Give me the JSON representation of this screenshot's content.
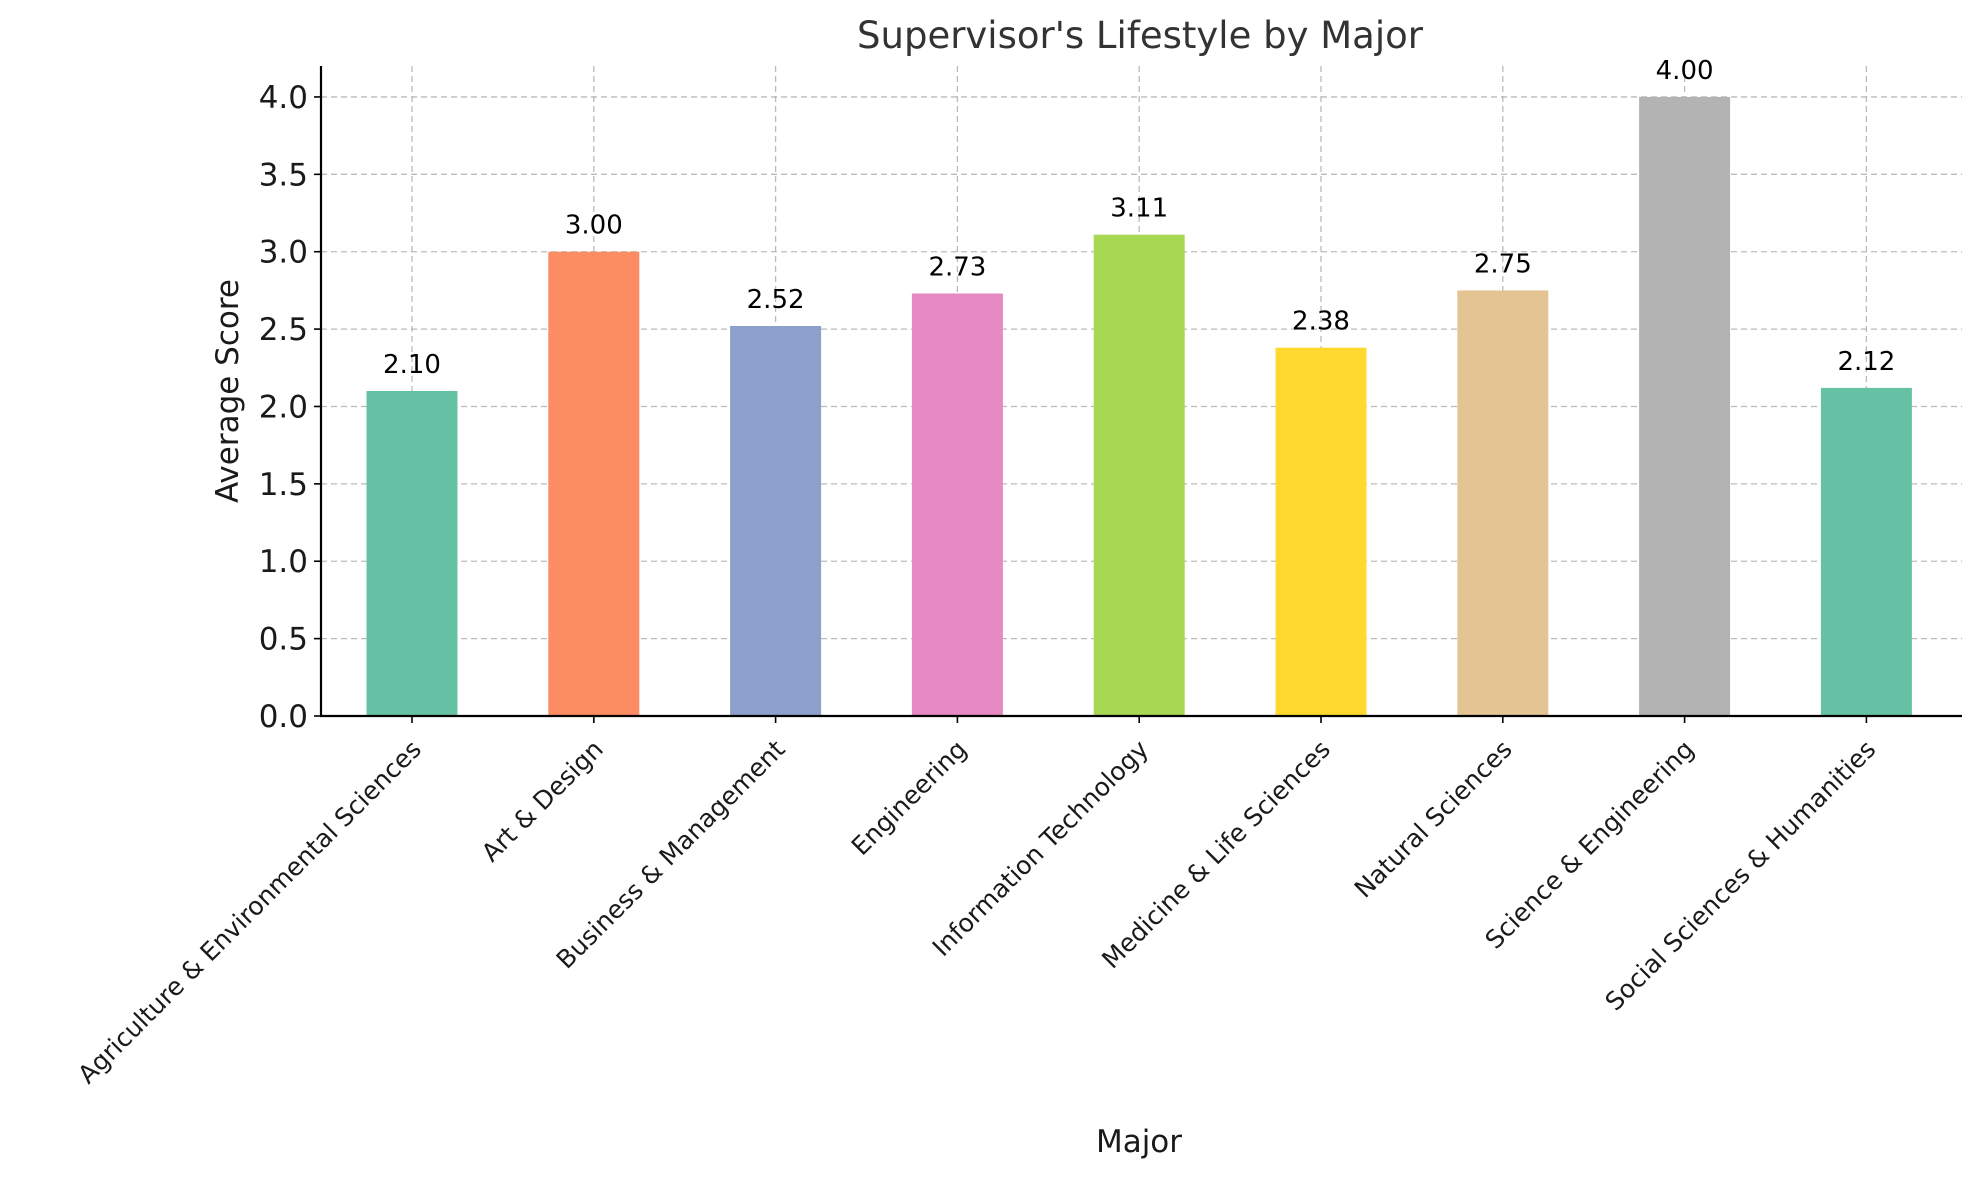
{
  "chart_data": {
    "type": "bar",
    "title": "Supervisor's Lifestyle by Major",
    "xlabel": "Major",
    "ylabel": "Average Score",
    "categories": [
      "Agriculture & Environmental Sciences",
      "Art & Design",
      "Business & Management",
      "Engineering",
      "Information Technology",
      "Medicine & Life Sciences",
      "Natural Sciences",
      "Science & Engineering",
      "Social Sciences & Humanities"
    ],
    "values": [
      2.1,
      3.0,
      2.52,
      2.73,
      3.11,
      2.38,
      2.75,
      4.0,
      2.12
    ],
    "value_labels": [
      "2.10",
      "3.00",
      "2.52",
      "2.73",
      "3.11",
      "2.38",
      "2.75",
      "4.00",
      "2.12"
    ],
    "colors": [
      "#66c2a5",
      "#fc8d62",
      "#8da0cb",
      "#e78ac3",
      "#a6d854",
      "#ffd92f",
      "#e5c494",
      "#b3b3b3",
      "#66c2a5"
    ],
    "ylim": [
      0,
      4.2
    ],
    "yticks": [
      0.0,
      0.5,
      1.0,
      1.5,
      2.0,
      2.5,
      3.0,
      3.5,
      4.0
    ],
    "ytick_labels": [
      "0.0",
      "0.5",
      "1.0",
      "1.5",
      "2.0",
      "2.5",
      "3.0",
      "3.5",
      "4.0"
    ],
    "grid": true,
    "legend": "none"
  }
}
